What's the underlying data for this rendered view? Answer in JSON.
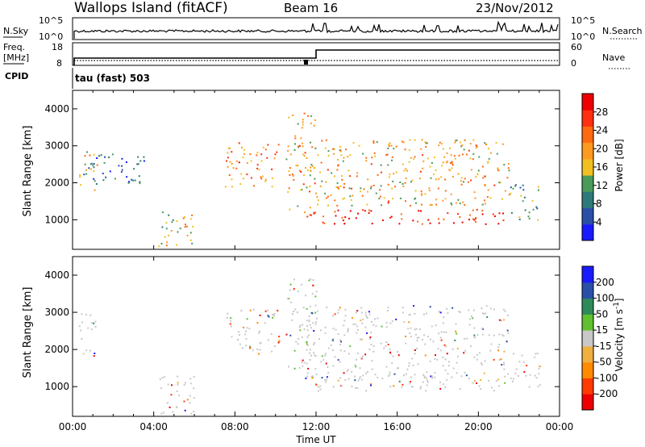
{
  "header": {
    "site": "Wallops Island (fitACF)",
    "beam": "Beam 16",
    "date": "23/Nov/2012"
  },
  "sky_panel": {
    "left_label": "N.Sky",
    "right_label": "N.Search",
    "left_ticks": [
      "10^5",
      "10^0"
    ],
    "right_ticks": [
      "10^5",
      "10^0"
    ]
  },
  "freq_panel": {
    "left_label_top": "Freq.",
    "left_label_unit": "[MHz]",
    "left_ticks": [
      "18",
      "8"
    ],
    "right_label": "Nave",
    "right_ticks": [
      "60",
      "0"
    ]
  },
  "cpid": {
    "label": "CPID",
    "value_text": "tau (fast) 503"
  },
  "time_axis": {
    "labels": [
      "00:00",
      "04:00",
      "08:00",
      "12:00",
      "16:00",
      "20:00",
      "00:00"
    ],
    "title": "Time UT"
  },
  "colors": {
    "power_scale": [
      "#1a1aff",
      "#2a4fa8",
      "#2e7a7a",
      "#4a9a5a",
      "#f0c020",
      "#ff9a20",
      "#ff6a10",
      "#ff3010",
      "#ee0000"
    ],
    "velocity_scale": [
      "#ee0000",
      "#ff3a00",
      "#ff8a00",
      "#f0b040",
      "#c8c8c8",
      "#60c030",
      "#2e8a5a",
      "#2a4fa8",
      "#1a1aff"
    ]
  },
  "chart_data": [
    {
      "type": "heatmap",
      "panel": "power",
      "ylabel": "Slant Range [km]",
      "yticks": [
        1000,
        2000,
        3000,
        4000
      ],
      "ylim": [
        200,
        4500
      ],
      "xlim_hours": [
        0,
        24
      ],
      "colorbar": {
        "label": "Power [dB]",
        "ticks": [
          "28",
          "24",
          "20",
          "16",
          "12",
          "8",
          "4"
        ],
        "range": [
          0,
          32
        ]
      },
      "echo_regions": [
        {
          "t0": 0.3,
          "t1": 1.2,
          "r0": 1800,
          "r1": 3000,
          "level": 0.55
        },
        {
          "t0": 0.5,
          "t1": 3.5,
          "r0": 2000,
          "r1": 2800,
          "level": 0.15
        },
        {
          "t0": 4.2,
          "t1": 6.0,
          "r0": 300,
          "r1": 1300,
          "level": 0.5
        },
        {
          "t0": 7.5,
          "t1": 10.2,
          "r0": 1900,
          "r1": 3100,
          "level": 0.7
        },
        {
          "t0": 10.5,
          "t1": 12.0,
          "r0": 1200,
          "r1": 4000,
          "level": 0.6
        },
        {
          "t0": 11.5,
          "t1": 21.5,
          "r0": 900,
          "r1": 1300,
          "level": 0.95
        },
        {
          "t0": 12.0,
          "t1": 21.5,
          "r0": 1400,
          "r1": 3200,
          "level": 0.6
        },
        {
          "t0": 21.5,
          "t1": 23.0,
          "r0": 1000,
          "r1": 2000,
          "level": 0.3
        }
      ]
    },
    {
      "type": "heatmap",
      "panel": "velocity",
      "ylabel": "Slant Range [km]",
      "yticks": [
        1000,
        2000,
        3000,
        4000
      ],
      "ylim": [
        200,
        4500
      ],
      "xlim_hours": [
        0,
        24
      ],
      "colorbar": {
        "label": "Velocity [m s^-1]",
        "ticks": [
          "200",
          "100",
          "50",
          "15",
          "-15",
          "-50",
          "-100",
          "-200"
        ],
        "range": [
          -250,
          250
        ]
      },
      "echo_regions": [
        {
          "t0": 0.3,
          "t1": 1.2,
          "r0": 1800,
          "r1": 3000,
          "vel": -5
        },
        {
          "t0": 4.2,
          "t1": 6.0,
          "r0": 200,
          "r1": 1300,
          "vel": 10
        },
        {
          "t0": 7.5,
          "t1": 10.2,
          "r0": 1900,
          "r1": 3100,
          "vel": -10
        },
        {
          "t0": 10.5,
          "t1": 12.0,
          "r0": 1200,
          "r1": 4000,
          "vel": 40
        },
        {
          "t0": 11.5,
          "t1": 21.5,
          "r0": 900,
          "r1": 3200,
          "vel": 0
        },
        {
          "t0": 21.5,
          "t1": 23.0,
          "r0": 1000,
          "r1": 2000,
          "vel": -20
        }
      ]
    }
  ]
}
